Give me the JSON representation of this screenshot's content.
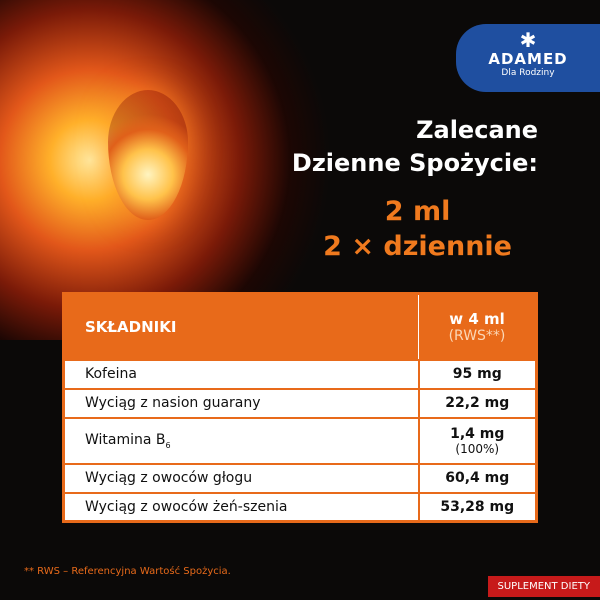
{
  "brand": {
    "name": "ADAMED",
    "tagline": "Dla Rodziny",
    "color": "#1f4fa0"
  },
  "heading": {
    "line1": "Zalecane",
    "line2": "Dzienne Spożycie:"
  },
  "dose": {
    "line1": "2 ml",
    "line2": "2 × dziennie",
    "color": "#f07a1e"
  },
  "table": {
    "col1": "SKŁADNIKI",
    "col2": "w 4 ml",
    "col2_sub": "(RWS**)",
    "rows": [
      {
        "name": "Kofeina",
        "value": "95 mg"
      },
      {
        "name": "Wyciąg z nasion guarany",
        "value": "22,2 mg"
      },
      {
        "name": "Witamina B",
        "name_sub": "6",
        "value": "1,4 mg",
        "pct": "(100%)"
      },
      {
        "name": "Wyciąg z owoców głogu",
        "value": "60,4 mg"
      },
      {
        "name": "Wyciąg z owoców żeń-szenia",
        "value": "53,28 mg"
      }
    ]
  },
  "footnote": "** RWS – Referencyjna Wartość Spożycia.",
  "badge": "SUPLEMENT DIETY"
}
